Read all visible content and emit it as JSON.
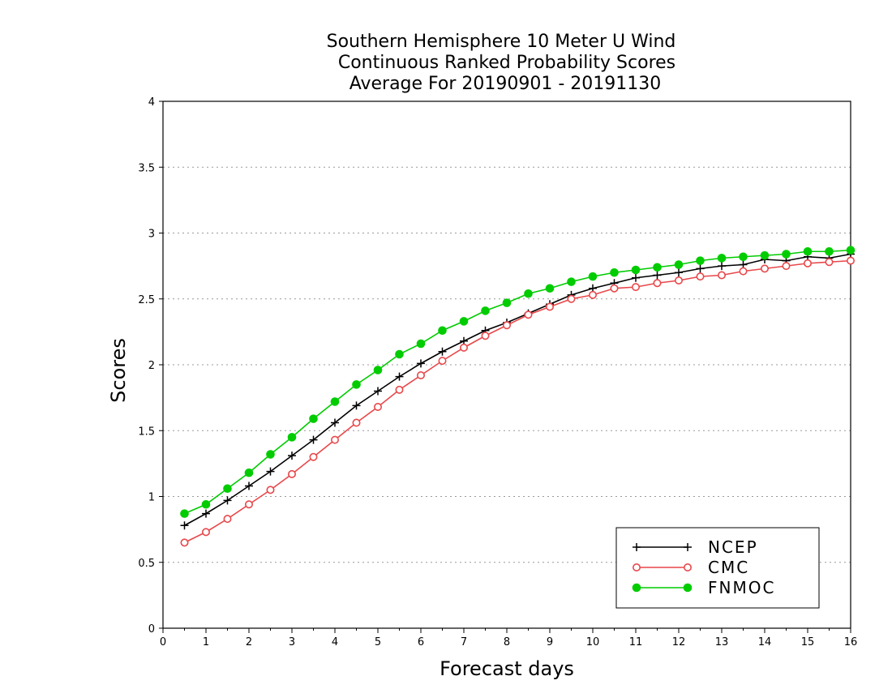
{
  "chart_data": {
    "type": "line",
    "title": [
      "Southern Hemisphere 10 Meter U Wind",
      "Continuous Ranked Probability Scores",
      "Average For 20190901 - 20191130"
    ],
    "xlabel": "Forecast days",
    "ylabel": "Scores",
    "xlim": [
      0,
      16
    ],
    "ylim": [
      0,
      4
    ],
    "xticks": [
      "0",
      "1",
      "2",
      "3",
      "4",
      "5",
      "6",
      "7",
      "8",
      "9",
      "10",
      "11",
      "12",
      "13",
      "14",
      "15",
      "16"
    ],
    "yticks": [
      "0",
      "0.5",
      "1",
      "1.5",
      "2",
      "2.5",
      "3",
      "3.5",
      "4"
    ],
    "grid": true,
    "legend_position": "bottom-right",
    "x": [
      0.5,
      1,
      1.5,
      2,
      2.5,
      3,
      3.5,
      4,
      4.5,
      5,
      5.5,
      6,
      6.5,
      7,
      7.5,
      8,
      8.5,
      9,
      9.5,
      10,
      10.5,
      11,
      11.5,
      12,
      12.5,
      13,
      13.5,
      14,
      14.5,
      15,
      15.5,
      16
    ],
    "series": [
      {
        "name": "NCEP",
        "color": "#000000",
        "marker": "plus",
        "values": [
          0.78,
          0.87,
          0.97,
          1.08,
          1.19,
          1.31,
          1.43,
          1.56,
          1.69,
          1.8,
          1.91,
          2.01,
          2.1,
          2.18,
          2.26,
          2.32,
          2.39,
          2.46,
          2.53,
          2.58,
          2.62,
          2.66,
          2.68,
          2.7,
          2.73,
          2.75,
          2.76,
          2.8,
          2.79,
          2.82,
          2.81,
          2.84
        ]
      },
      {
        "name": "CMC",
        "color": "#e8474a",
        "marker": "open-circle",
        "values": [
          0.65,
          0.73,
          0.83,
          0.94,
          1.05,
          1.17,
          1.3,
          1.43,
          1.56,
          1.68,
          1.81,
          1.92,
          2.03,
          2.13,
          2.22,
          2.3,
          2.38,
          2.44,
          2.5,
          2.53,
          2.58,
          2.59,
          2.62,
          2.64,
          2.67,
          2.68,
          2.71,
          2.73,
          2.75,
          2.77,
          2.78,
          2.79
        ]
      },
      {
        "name": "FNMOC",
        "color": "#00cc00",
        "marker": "filled-circle",
        "values": [
          0.87,
          0.94,
          1.06,
          1.18,
          1.32,
          1.45,
          1.59,
          1.72,
          1.85,
          1.96,
          2.08,
          2.16,
          2.26,
          2.33,
          2.41,
          2.47,
          2.54,
          2.58,
          2.63,
          2.67,
          2.7,
          2.72,
          2.74,
          2.76,
          2.79,
          2.81,
          2.82,
          2.83,
          2.84,
          2.86,
          2.86,
          2.87
        ]
      }
    ]
  }
}
